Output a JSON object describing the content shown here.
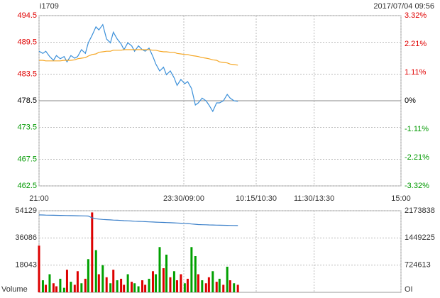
{
  "header": {
    "symbol": "i1709",
    "datetime": "2017/07/04 09:56"
  },
  "chart_data": [
    {
      "type": "line",
      "xlim": [
        0,
        375
      ],
      "xticks": [
        {
          "value": 0,
          "label": "21:00"
        },
        {
          "value": 150,
          "label": "23:30/09:00"
        },
        {
          "value": 225,
          "label": "10:15/10:30"
        },
        {
          "value": 285,
          "label": "11:30/13:30"
        },
        {
          "value": 375,
          "label": "15:00"
        }
      ],
      "ylim": [
        462.5,
        494.5
      ],
      "yticks": [
        494.5,
        489.5,
        483.5,
        478.5,
        473.5,
        467.5,
        462.5
      ],
      "y2lim": [
        -3.32,
        3.32
      ],
      "y2ticks": [
        {
          "value": 3.32,
          "label": "3.32%"
        },
        {
          "value": 2.21,
          "label": "2.21%"
        },
        {
          "value": 1.11,
          "label": "1.11%"
        },
        {
          "value": 0,
          "label": "0%"
        },
        {
          "value": -1.11,
          "label": "-1.11%"
        },
        {
          "value": -2.21,
          "label": "-2.21%"
        },
        {
          "value": -3.32,
          "label": "-3.32%"
        }
      ],
      "up_color": "#e00000",
      "down_color": "#009900",
      "grid": true,
      "x": [
        0,
        4,
        7,
        11,
        15,
        18,
        22,
        26,
        29,
        33,
        37,
        40,
        44,
        48,
        51,
        55,
        59,
        62,
        66,
        70,
        74,
        77,
        81,
        85,
        88,
        92,
        96,
        99,
        103,
        107,
        110,
        114,
        118,
        121,
        125,
        129,
        132,
        136,
        140,
        143,
        147,
        151,
        154,
        158,
        162,
        165,
        169,
        173,
        176,
        180,
        184,
        187,
        191,
        195,
        198,
        202,
        206
      ],
      "series": [
        {
          "color": "#3a8fd9",
          "values": [
            487.8,
            487.4,
            487.8,
            486.8,
            486.1,
            487.0,
            486.4,
            486.8,
            485.8,
            487.0,
            486.5,
            486.8,
            488.1,
            487.4,
            489.4,
            490.8,
            492.4,
            491.8,
            492.8,
            490.1,
            489.4,
            491.4,
            490.1,
            489.2,
            488.1,
            489.4,
            488.8,
            487.8,
            488.8,
            488.1,
            487.8,
            488.4,
            486.8,
            485.4,
            484.1,
            484.8,
            483.4,
            484.1,
            482.8,
            481.4,
            482.5,
            481.7,
            482.1,
            480.8,
            477.7,
            478.1,
            479.0,
            478.5,
            477.7,
            476.5,
            478.1,
            478.1,
            478.5,
            479.7,
            479.0,
            478.5,
            478.4
          ]
        },
        {
          "color": "#f5a623",
          "values": [
            486.1,
            486.1,
            486.0,
            486.0,
            486.0,
            486.0,
            486.0,
            486.1,
            486.1,
            486.1,
            486.2,
            486.4,
            486.5,
            486.6,
            486.9,
            487.2,
            487.3,
            487.6,
            487.7,
            487.8,
            487.8,
            488.0,
            488.0,
            488.0,
            488.1,
            488.1,
            488.1,
            488.1,
            488.1,
            488.1,
            488.1,
            488.1,
            488.0,
            488.0,
            487.8,
            487.7,
            487.7,
            487.6,
            487.6,
            487.4,
            487.3,
            487.2,
            487.2,
            487.0,
            486.9,
            486.8,
            486.6,
            486.5,
            486.4,
            486.2,
            486.1,
            485.8,
            485.7,
            485.6,
            485.4,
            485.3,
            485.2
          ]
        }
      ]
    },
    {
      "type": "bar",
      "ylabel": "Volume",
      "y2label": "OI",
      "ylim": [
        0,
        54129
      ],
      "yticks": [
        54129,
        36086,
        18043
      ],
      "y2lim": [
        0,
        2173838
      ],
      "y2ticks": [
        2173838,
        1449225,
        724613
      ],
      "grid": true,
      "series": [
        {
          "type": "bar",
          "values": [
            31000,
            8000,
            5000,
            12000,
            6000,
            4000,
            9000,
            3000,
            15000,
            7000,
            5000,
            14000,
            6000,
            9000,
            22000,
            53000,
            28000,
            12000,
            18000,
            10000,
            6000,
            15000,
            8000,
            9000,
            5000,
            12000,
            7000,
            6000,
            4000,
            8000,
            5000,
            9000,
            14000,
            12000,
            30000,
            16000,
            25000,
            10000,
            14000,
            8000,
            12000,
            6000,
            9000,
            30000,
            24000,
            12000,
            8000,
            6000,
            10000,
            14000,
            7000,
            9000,
            5000,
            17000,
            8000,
            6000,
            5000
          ],
          "colors": [
            "#dd0000",
            "#00a000",
            "#dd0000",
            "#00a000",
            "#dd0000",
            "#dd0000",
            "#00a000",
            "#00a000",
            "#dd0000",
            "#00a000",
            "#dd0000",
            "#dd0000",
            "#00a000",
            "#dd0000",
            "#00a000",
            "#dd0000",
            "#00a000",
            "#dd0000",
            "#00a000",
            "#dd0000",
            "#00a000",
            "#dd0000",
            "#00a000",
            "#dd0000",
            "#dd0000",
            "#00a000",
            "#dd0000",
            "#00a000",
            "#00a000",
            "#dd0000",
            "#dd0000",
            "#00a000",
            "#dd0000",
            "#00a000",
            "#00a000",
            "#dd0000",
            "#00a000",
            "#dd0000",
            "#00a000",
            "#dd0000",
            "#dd0000",
            "#00a000",
            "#dd0000",
            "#00a000",
            "#00a000",
            "#dd0000",
            "#00a000",
            "#dd0000",
            "#dd0000",
            "#00a000",
            "#dd0000",
            "#00a000",
            "#dd0000",
            "#00a000",
            "#dd0000",
            "#00a000",
            "#dd0000"
          ]
        },
        {
          "type": "line",
          "axis": "y2",
          "color": "#3a7fc9",
          "values": [
            2062000,
            2060000,
            2057000,
            2055000,
            2053000,
            2051000,
            2049000,
            2047000,
            2045000,
            2043000,
            2041000,
            2039000,
            2037000,
            2035000,
            2033000,
            1985000,
            1960000,
            1950000,
            1942000,
            1935000,
            1930000,
            1925000,
            1920000,
            1915000,
            1910000,
            1905000,
            1900000,
            1895000,
            1890000,
            1886000,
            1882000,
            1878000,
            1874000,
            1870000,
            1866000,
            1862000,
            1858000,
            1854000,
            1850000,
            1846000,
            1842000,
            1838000,
            1834000,
            1820000,
            1812000,
            1806000,
            1802000,
            1799000,
            1796000,
            1793000,
            1790000,
            1788000,
            1786000,
            1784000,
            1782000,
            1780000,
            1778000
          ]
        }
      ]
    }
  ]
}
